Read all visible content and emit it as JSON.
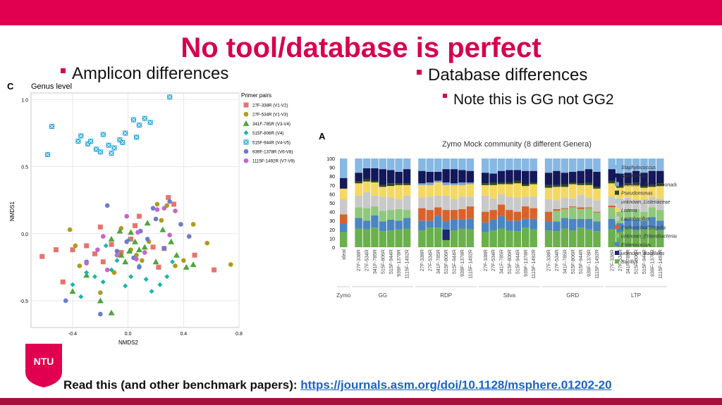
{
  "slide": {
    "title": "No tool/database is perfect",
    "bullet_left": "Amplicon differences",
    "bullet_right": "Database differences",
    "sub_bullet_right": "Note this is GG not GG2",
    "logo_text": "NTU",
    "footer_text": "Read this (and other benchmark papers): ",
    "footer_link": "https://journals.asm.org/doi/10.1128/msphere.01202-20"
  },
  "colors": {
    "accent": "#e0004f",
    "title": "#d6004f",
    "link": "#1a63c9"
  },
  "chart_data": [
    {
      "type": "scatter",
      "panel_label": "C",
      "title": "Genus level",
      "xlabel": "NMDS2",
      "ylabel": "NMDS1",
      "xlim": [
        -0.7,
        0.8
      ],
      "ylim": [
        -0.7,
        1.05
      ],
      "xticks": [
        -0.4,
        0.0,
        0.4,
        0.8
      ],
      "xtick_labels": [
        "-0.4",
        "0.0",
        "0.4",
        "0.8"
      ],
      "yticks": [
        1.0,
        0.5,
        0.0,
        -0.5
      ],
      "ytick_labels": [
        "1.0",
        "0.5",
        "0.0",
        "-0.5"
      ],
      "grid": true,
      "legend_title": "Primer pairs",
      "legend_position": "right",
      "series": [
        {
          "name": "27F-338R (V1-V2)",
          "color": "#e8736d",
          "marker": "square",
          "x": [
            -0.62,
            -0.52,
            -0.47,
            -0.4,
            -0.3,
            -0.24,
            -0.18,
            -0.12,
            -0.05,
            0.02,
            0.08,
            0.18,
            0.26,
            0.29,
            0.33,
            0.48,
            0.62,
            -0.2,
            0.05,
            0.22
          ],
          "y": [
            -0.17,
            -0.12,
            -0.36,
            -0.12,
            -0.09,
            -0.15,
            -0.21,
            -0.08,
            -0.14,
            -0.04,
            0.13,
            -0.1,
            -0.11,
            0.27,
            0.22,
            -0.16,
            -0.27,
            0.05,
            0.06,
            -0.25
          ]
        },
        {
          "name": "27F-534R (V1-V3)",
          "color": "#b09a1c",
          "marker": "circle",
          "x": [
            -0.42,
            -0.38,
            -0.35,
            -0.1,
            -0.05,
            0.06,
            0.1,
            0.15,
            0.21,
            0.24,
            0.28,
            0.34,
            0.4,
            0.47,
            0.57,
            0.74,
            -0.2,
            0.02
          ],
          "y": [
            0.03,
            -0.09,
            -0.24,
            -0.29,
            0.04,
            -0.16,
            -0.2,
            -0.06,
            0.22,
            0.1,
            0.21,
            -0.24,
            -0.2,
            0.07,
            -0.07,
            -0.23,
            -0.44,
            -0.12
          ]
        },
        {
          "name": "341F-785R (V3-V4)",
          "color": "#4da53d",
          "marker": "triangle",
          "x": [
            -0.4,
            -0.3,
            -0.2,
            -0.12,
            -0.05,
            -0.02,
            0.02,
            0.05,
            0.08,
            0.12,
            0.2,
            0.25,
            0.31,
            0.35,
            0.42,
            0.47,
            -0.12,
            -0.06,
            0.14,
            0.01
          ],
          "y": [
            -0.43,
            -0.31,
            -0.5,
            -0.04,
            -0.16,
            -0.21,
            0.01,
            -0.06,
            -0.12,
            -0.1,
            -0.21,
            0.03,
            -0.06,
            -0.16,
            -0.25,
            -0.23,
            -0.59,
            0.02,
            0.08,
            -0.13
          ]
        },
        {
          "name": "515F-806R (V4)",
          "color": "#16b6a6",
          "marker": "diamond",
          "x": [
            -0.4,
            -0.34,
            -0.3,
            -0.24,
            -0.18,
            -0.12,
            -0.08,
            -0.02,
            0.02,
            0.08,
            0.13,
            0.17,
            0.23,
            0.28,
            0.32,
            -0.16,
            0.0
          ],
          "y": [
            -0.38,
            -0.47,
            -0.29,
            -0.32,
            -0.36,
            -0.27,
            -0.2,
            -0.39,
            -0.32,
            -0.24,
            -0.34,
            -0.43,
            -0.38,
            -0.32,
            -0.21,
            -0.09,
            -0.05
          ]
        },
        {
          "name": "515F-944R (V4-V5)",
          "color": "#22a7de",
          "marker": "xsquare",
          "x": [
            -0.58,
            -0.55,
            -0.36,
            -0.34,
            -0.29,
            -0.23,
            -0.2,
            -0.18,
            -0.14,
            -0.1,
            -0.06,
            -0.02,
            0.04,
            0.08,
            0.12,
            0.16,
            0.3,
            -0.27,
            -0.12,
            -0.04,
            0.06
          ],
          "y": [
            0.59,
            0.8,
            0.69,
            0.73,
            0.67,
            0.63,
            0.61,
            0.74,
            0.66,
            0.64,
            0.7,
            0.75,
            0.85,
            0.81,
            0.86,
            0.83,
            1.02,
            0.69,
            0.6,
            0.68,
            0.72
          ]
        },
        {
          "name": "939F-1378R (V6-V8)",
          "color": "#6b7bd0",
          "marker": "circle",
          "x": [
            -0.45,
            -0.2,
            -0.15,
            -0.08,
            -0.01,
            0.04,
            0.09,
            0.14,
            0.2,
            0.26,
            0.3,
            0.38,
            0.44,
            -0.3,
            0.08,
            0.18
          ],
          "y": [
            -0.5,
            -0.6,
            0.21,
            -0.13,
            -0.06,
            -0.18,
            0.02,
            -0.04,
            0.11,
            -0.11,
            0.24,
            0.07,
            -0.02,
            -0.21,
            -0.25,
            0.19
          ]
        },
        {
          "name": "1115F-1492R (V7-V9)",
          "color": "#c765c8",
          "marker": "circle",
          "x": [
            -0.3,
            -0.22,
            -0.15,
            -0.08,
            -0.01,
            0.07,
            0.12,
            0.21,
            0.26,
            0.3,
            0.34,
            -0.18,
            0.06
          ],
          "y": [
            -0.22,
            -0.12,
            -0.27,
            -0.16,
            0.13,
            0.01,
            -0.14,
            0.18,
            0.19,
            -0.01,
            0.17,
            -0.02,
            -0.19
          ]
        }
      ]
    },
    {
      "type": "bar",
      "stacked": true,
      "panel_label": "A",
      "title": "Zymo Mock community (8 different Genera)",
      "ylim": [
        0,
        100
      ],
      "yticks": [
        0,
        10,
        20,
        30,
        40,
        50,
        60,
        70,
        80,
        90,
        100
      ],
      "legend_position": "right",
      "groups": [
        {
          "name": "Zymo",
          "categories": [
            "ideal"
          ]
        },
        {
          "name": "GG",
          "categories": [
            "27F-338R",
            "27F-534R",
            "341F-785R",
            "515F-806R",
            "515F-944R",
            "939F-1378R",
            "1115F-1492R"
          ]
        },
        {
          "name": "RDP",
          "categories": [
            "27F-338R",
            "27F-534R",
            "341F-785R",
            "515F-806R",
            "515F-944R",
            "939F-1378R",
            "1115F-1492R"
          ]
        },
        {
          "name": "Silva",
          "categories": [
            "27F-338R",
            "27F-534R",
            "341F-785R",
            "515F-806R",
            "515F-944R",
            "939F-1378R",
            "1115F-1492R"
          ]
        },
        {
          "name": "GRD",
          "categories": [
            "27F-338R",
            "27F-534R",
            "341F-785R",
            "515F-806R",
            "515F-944R",
            "939F-1378R",
            "1115F-1492R"
          ]
        },
        {
          "name": "LTP",
          "categories": [
            "27F-338R",
            "27F-534R",
            "341F-785R",
            "515F-806R",
            "515F-944R",
            "939F-1378R",
            "1115F-1492R"
          ]
        }
      ],
      "series": [
        {
          "name": "Bacillus",
          "color": "#6ab04c",
          "values": [
            17,
            21,
            20,
            22,
            18,
            19,
            20,
            21,
            19,
            22,
            22,
            8,
            19,
            21,
            20,
            17,
            19,
            21,
            19,
            18,
            22,
            20,
            19,
            18,
            21,
            19,
            22,
            20,
            18,
            20,
            17,
            21,
            19,
            20,
            22,
            19
          ]
        },
        {
          "name": "unknown_Bacillales",
          "color": "#1a2a6b",
          "values": [
            0,
            0,
            0,
            0,
            0,
            0,
            0,
            0,
            0,
            0,
            0,
            12,
            0,
            0,
            0,
            0,
            0,
            0,
            0,
            0,
            0,
            0,
            0,
            0,
            0,
            0,
            0,
            0,
            0,
            0,
            0,
            0,
            0,
            0,
            0,
            0
          ]
        },
        {
          "name": "Enterococcus",
          "color": "#4b86c2",
          "values": [
            10,
            12,
            10,
            14,
            11,
            12,
            10,
            12,
            11,
            8,
            13,
            9,
            12,
            10,
            12,
            11,
            12,
            14,
            11,
            12,
            10,
            12,
            10,
            11,
            12,
            13,
            10,
            12,
            11,
            12,
            10,
            11,
            12,
            10,
            12,
            11
          ]
        },
        {
          "name": "unknown_Enterobacteriaceae",
          "color": "#8fc87a",
          "values": [
            0,
            12,
            14,
            10,
            12,
            11,
            13,
            9,
            0,
            0,
            0,
            0,
            0,
            0,
            0,
            0,
            0,
            0,
            0,
            0,
            0,
            0,
            0,
            12,
            10,
            13,
            11,
            12,
            10,
            13,
            13,
            11,
            12,
            10,
            11,
            12
          ]
        },
        {
          "name": "Escherichia/Shigella",
          "color": "#d9622b",
          "values": [
            10,
            0,
            0,
            0,
            0,
            0,
            0,
            0,
            14,
            12,
            10,
            13,
            11,
            12,
            14,
            12,
            11,
            13,
            12,
            10,
            14,
            12,
            11,
            2,
            1,
            1,
            2,
            1,
            1,
            2,
            0,
            0,
            0,
            0,
            0,
            0
          ]
        },
        {
          "name": "Lactobacillus",
          "color": "#c9c9c9",
          "values": [
            17,
            13,
            18,
            12,
            16,
            14,
            11,
            16,
            12,
            15,
            13,
            16,
            12,
            14,
            11,
            18,
            13,
            12,
            15,
            16,
            11,
            13,
            14,
            10,
            12,
            9,
            14,
            11,
            13,
            10,
            15,
            13,
            11,
            14,
            12,
            13
          ]
        },
        {
          "name": "Listeria",
          "color": "#f5d862",
          "values": [
            12,
            14,
            12,
            15,
            11,
            13,
            16,
            12,
            14,
            13,
            15,
            12,
            16,
            13,
            14,
            12,
            15,
            11,
            14,
            16,
            12,
            14,
            13,
            15,
            12,
            16,
            11,
            14,
            13,
            15,
            12,
            14,
            16,
            13,
            11,
            14
          ]
        },
        {
          "name": "unknown_Listeriaceae",
          "color": "#a6cde3",
          "values": [
            0,
            0,
            0,
            0,
            0,
            0,
            0,
            0,
            0,
            0,
            0,
            0,
            0,
            0,
            0,
            0,
            0,
            0,
            0,
            0,
            0,
            0,
            0,
            0,
            0,
            0,
            0,
            0,
            0,
            0,
            0,
            0,
            0,
            0,
            0,
            0
          ]
        },
        {
          "name": "Pseudomonas",
          "color": "#2d4a1e",
          "values": [
            0,
            2,
            3,
            2,
            2,
            3,
            2,
            2,
            0,
            0,
            0,
            0,
            0,
            0,
            0,
            2,
            3,
            2,
            2,
            3,
            2,
            2,
            3,
            2,
            3,
            2,
            2,
            3,
            2,
            3,
            2,
            2,
            3,
            2,
            2,
            3
          ]
        },
        {
          "name": "unknown_Pseudomonadaceae",
          "color": "#7fa1c9",
          "values": [
            0,
            0,
            0,
            0,
            0,
            0,
            0,
            0,
            2,
            3,
            2,
            3,
            2,
            3,
            2,
            0,
            0,
            0,
            0,
            0,
            0,
            0,
            0,
            0,
            0,
            0,
            0,
            0,
            0,
            0,
            0,
            0,
            0,
            0,
            0,
            0
          ]
        },
        {
          "name": "Salmonella",
          "color": "#13185a",
          "values": [
            12,
            10,
            12,
            14,
            18,
            15,
            13,
            16,
            14,
            12,
            10,
            15,
            16,
            14,
            13,
            12,
            10,
            13,
            14,
            12,
            15,
            13,
            14,
            16,
            13,
            12,
            14,
            15,
            17,
            13,
            14,
            12,
            13,
            15,
            16,
            14
          ]
        },
        {
          "name": "Staphylococcus",
          "color": "#87b8e4",
          "values": [
            22,
            16,
            11,
            11,
            12,
            13,
            15,
            12,
            14,
            15,
            15,
            12,
            12,
            13,
            14,
            16,
            17,
            14,
            13,
            13,
            14,
            14,
            16,
            14,
            16,
            15,
            14,
            12,
            15,
            12,
            17,
            16,
            14,
            16,
            14,
            14
          ]
        }
      ]
    }
  ]
}
